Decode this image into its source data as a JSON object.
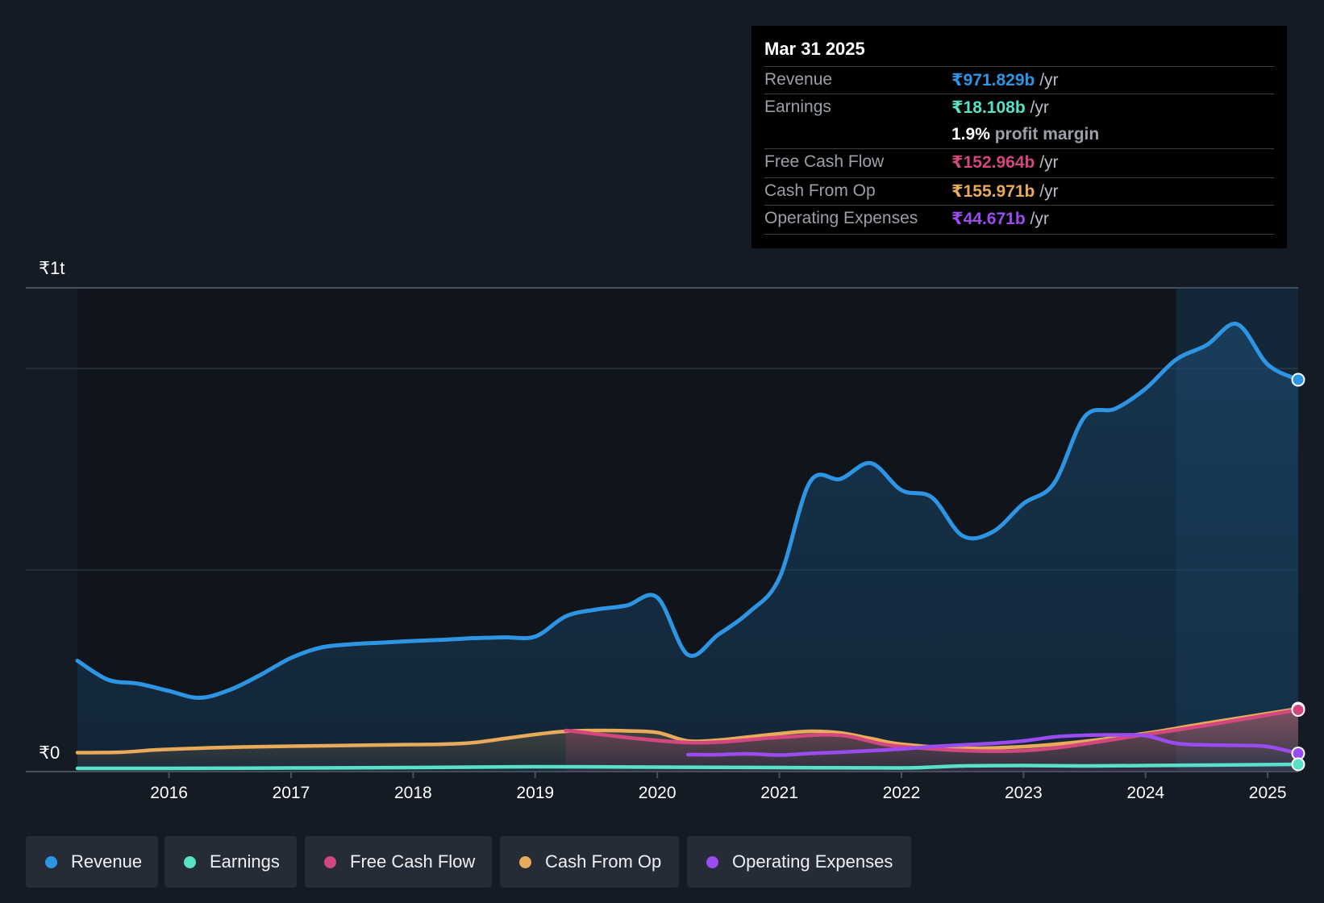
{
  "chart_data": {
    "type": "line",
    "y_labels": {
      "top": "₹1t",
      "bottom": "₹0"
    },
    "ylim": [
      0,
      1200
    ],
    "xlim": [
      2015.25,
      2025.25
    ],
    "x_ticks": [
      "2016",
      "2017",
      "2018",
      "2019",
      "2020",
      "2021",
      "2022",
      "2023",
      "2024",
      "2025"
    ],
    "grid": true,
    "highlight_region": [
      2024.25,
      2025.25
    ],
    "series": [
      {
        "name": "Revenue",
        "color": "#2d95e3",
        "points": [
          [
            2015.25,
            275
          ],
          [
            2015.5,
            228
          ],
          [
            2015.75,
            218
          ],
          [
            2016.0,
            200
          ],
          [
            2016.25,
            183
          ],
          [
            2016.5,
            203
          ],
          [
            2016.75,
            240
          ],
          [
            2017.0,
            282
          ],
          [
            2017.25,
            308
          ],
          [
            2017.5,
            316
          ],
          [
            2017.75,
            320
          ],
          [
            2018.0,
            324
          ],
          [
            2018.25,
            327
          ],
          [
            2018.5,
            331
          ],
          [
            2018.75,
            333
          ],
          [
            2019.0,
            335
          ],
          [
            2019.25,
            385
          ],
          [
            2019.5,
            402
          ],
          [
            2019.75,
            412
          ],
          [
            2020.0,
            432
          ],
          [
            2020.25,
            290
          ],
          [
            2020.5,
            340
          ],
          [
            2020.75,
            395
          ],
          [
            2021.0,
            480
          ],
          [
            2021.25,
            718
          ],
          [
            2021.5,
            726
          ],
          [
            2021.75,
            765
          ],
          [
            2022.0,
            698
          ],
          [
            2022.25,
            680
          ],
          [
            2022.5,
            585
          ],
          [
            2022.75,
            595
          ],
          [
            2023.0,
            665
          ],
          [
            2023.25,
            715
          ],
          [
            2023.5,
            880
          ],
          [
            2023.75,
            900
          ],
          [
            2024.0,
            950
          ],
          [
            2024.25,
            1022
          ],
          [
            2024.5,
            1058
          ],
          [
            2024.75,
            1110
          ],
          [
            2025.0,
            1010
          ],
          [
            2025.25,
            972
          ]
        ]
      },
      {
        "name": "Earnings",
        "color": "#58e1c6",
        "points": [
          [
            2015.25,
            8
          ],
          [
            2016.0,
            8
          ],
          [
            2017.0,
            9
          ],
          [
            2018.0,
            10
          ],
          [
            2019.0,
            12
          ],
          [
            2020.0,
            11
          ],
          [
            2021.0,
            10
          ],
          [
            2022.0,
            9
          ],
          [
            2022.5,
            14
          ],
          [
            2023.0,
            15
          ],
          [
            2023.5,
            14
          ],
          [
            2024.0,
            15
          ],
          [
            2025.25,
            18
          ]
        ]
      },
      {
        "name": "Free Cash Flow",
        "color": "#d1477e",
        "points": [
          [
            2019.25,
            102
          ],
          [
            2020.25,
            72
          ],
          [
            2021.0,
            85
          ],
          [
            2021.5,
            90
          ],
          [
            2022.0,
            62
          ],
          [
            2023.0,
            52
          ],
          [
            2024.0,
            92
          ],
          [
            2024.5,
            115
          ],
          [
            2025.25,
            153
          ]
        ]
      },
      {
        "name": "Cash From Op",
        "color": "#e8aa5b",
        "points": [
          [
            2015.25,
            47
          ],
          [
            2015.6,
            48
          ],
          [
            2015.9,
            54
          ],
          [
            2016.25,
            58
          ],
          [
            2016.6,
            61
          ],
          [
            2017.0,
            63
          ],
          [
            2017.5,
            65
          ],
          [
            2018.0,
            67
          ],
          [
            2018.25,
            68
          ],
          [
            2018.5,
            72
          ],
          [
            2018.75,
            82
          ],
          [
            2019.0,
            92
          ],
          [
            2019.25,
            100
          ],
          [
            2019.5,
            102
          ],
          [
            2019.75,
            101
          ],
          [
            2020.0,
            97
          ],
          [
            2020.25,
            76
          ],
          [
            2020.5,
            78
          ],
          [
            2020.75,
            86
          ],
          [
            2021.0,
            94
          ],
          [
            2021.25,
            100
          ],
          [
            2021.5,
            96
          ],
          [
            2021.75,
            82
          ],
          [
            2022.0,
            68
          ],
          [
            2022.5,
            58
          ],
          [
            2023.0,
            62
          ],
          [
            2023.5,
            75
          ],
          [
            2024.0,
            95
          ],
          [
            2024.5,
            120
          ],
          [
            2025.25,
            156
          ]
        ]
      },
      {
        "name": "Operating Expenses",
        "color": "#9b4cf0",
        "points": [
          [
            2020.25,
            42
          ],
          [
            2020.5,
            42
          ],
          [
            2020.75,
            44
          ],
          [
            2021.0,
            41
          ],
          [
            2021.25,
            45
          ],
          [
            2021.5,
            48
          ],
          [
            2021.75,
            52
          ],
          [
            2022.0,
            56
          ],
          [
            2022.25,
            62
          ],
          [
            2022.5,
            66
          ],
          [
            2022.75,
            70
          ],
          [
            2023.0,
            76
          ],
          [
            2023.25,
            86
          ],
          [
            2023.5,
            90
          ],
          [
            2023.75,
            91
          ],
          [
            2024.0,
            89
          ],
          [
            2024.25,
            70
          ],
          [
            2024.5,
            66
          ],
          [
            2024.75,
            65
          ],
          [
            2025.0,
            62
          ],
          [
            2025.25,
            45
          ]
        ]
      }
    ]
  },
  "tooltip": {
    "date": "Mar 31 2025",
    "rows": [
      {
        "label": "Revenue",
        "value": "₹971.829b",
        "unit": "/yr",
        "color": "#2d95e3"
      },
      {
        "label": "Earnings",
        "value": "₹18.108b",
        "unit": "/yr",
        "color": "#58e1c6"
      },
      {
        "label": "",
        "value": "1.9%",
        "unit": "profit margin",
        "color": "#ffffff"
      },
      {
        "label": "Free Cash Flow",
        "value": "₹152.964b",
        "unit": "/yr",
        "color": "#d1477e"
      },
      {
        "label": "Cash From Op",
        "value": "₹155.971b",
        "unit": "/yr",
        "color": "#e8aa5b"
      },
      {
        "label": "Operating Expenses",
        "value": "₹44.671b",
        "unit": "/yr",
        "color": "#9b4cf0"
      }
    ]
  },
  "legend": [
    {
      "label": "Revenue",
      "color": "#2d95e3"
    },
    {
      "label": "Earnings",
      "color": "#58e1c6"
    },
    {
      "label": "Free Cash Flow",
      "color": "#d1477e"
    },
    {
      "label": "Cash From Op",
      "color": "#e8aa5b"
    },
    {
      "label": "Operating Expenses",
      "color": "#9b4cf0"
    }
  ]
}
